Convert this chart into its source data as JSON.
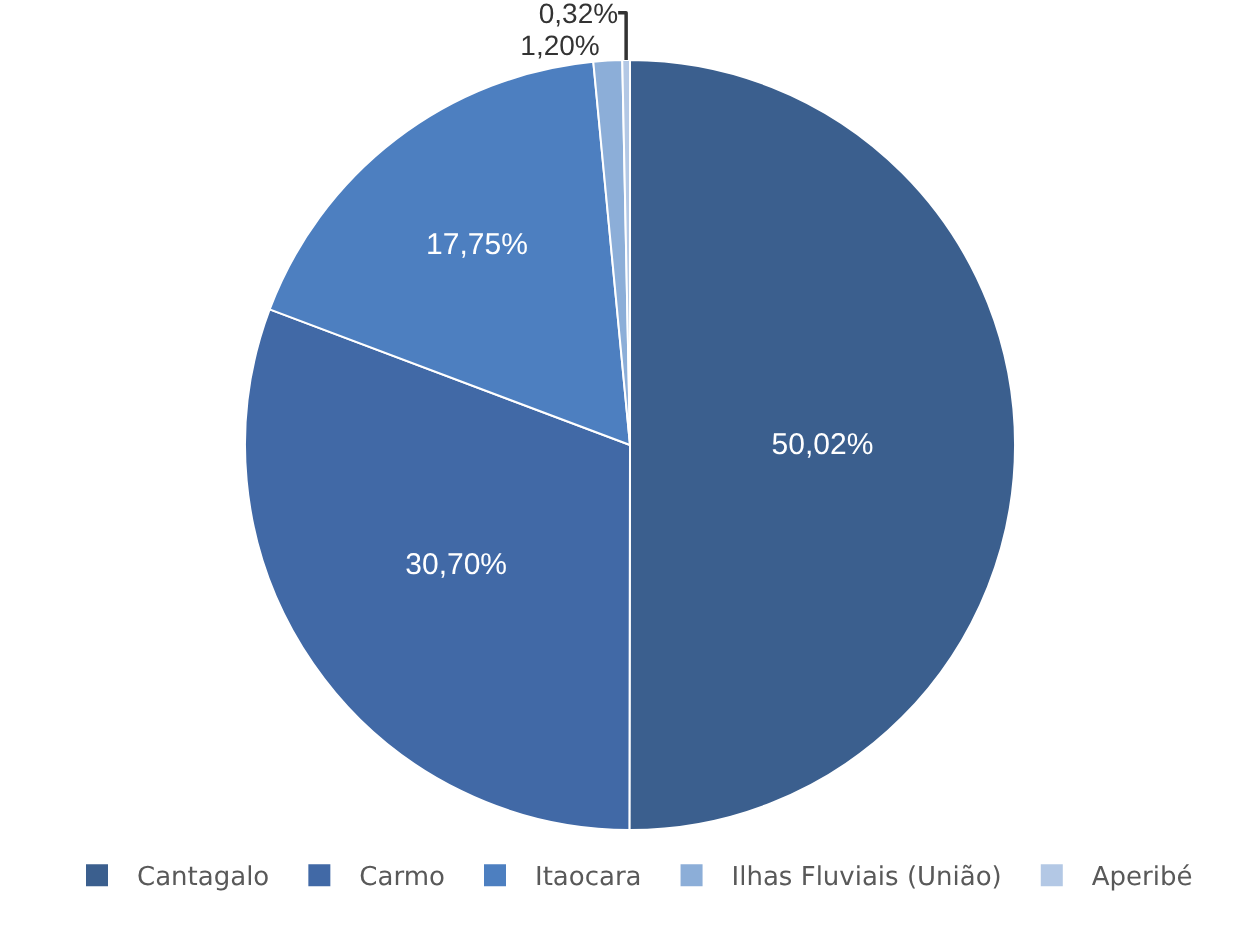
{
  "chart_data": {
    "type": "pie",
    "categories": [
      "Cantagalo",
      "Carmo",
      "Itaocara",
      "Ilhas Fluviais (União)",
      "Aperibé"
    ],
    "values": [
      50.02,
      30.7,
      17.75,
      1.2,
      0.32
    ],
    "value_labels": [
      "50,02%",
      "30,70%",
      "17,75%",
      "1,20%",
      "0,32%"
    ],
    "colors": [
      "#3b5f8e",
      "#4169a6",
      "#4d7fc0",
      "#8caed8",
      "#b3c8e5"
    ],
    "legend": "bottom"
  }
}
